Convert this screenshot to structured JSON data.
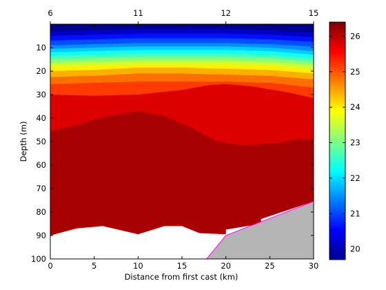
{
  "chart_data": {
    "type": "heatmap",
    "xlabel": "Distance from first cast (km)",
    "ylabel": "Depth (m)",
    "xlim": [
      0,
      30
    ],
    "ylim": [
      0,
      100
    ],
    "y_reversed": true,
    "x_ticks": [
      0,
      5,
      10,
      15,
      20,
      25,
      30
    ],
    "y_ticks": [
      10,
      20,
      30,
      40,
      50,
      60,
      70,
      80,
      90,
      100
    ],
    "top_axis": {
      "ticks": [
        {
          "x": 0,
          "label": "6"
        },
        {
          "x": 10,
          "label": "11"
        },
        {
          "x": 20,
          "label": "12"
        },
        {
          "x": 30,
          "label": "15"
        }
      ]
    },
    "colorbar": {
      "range": [
        19.7,
        26.4
      ],
      "ticks": [
        20,
        21,
        22,
        23,
        24,
        25,
        26
      ],
      "colormap": "jet"
    },
    "contour_bands": [
      {
        "value": 19.8,
        "color": "#00008f",
        "points": [
          [
            0,
            0
          ],
          [
            30,
            0
          ],
          [
            30,
            100
          ],
          [
            0,
            100
          ]
        ]
      },
      {
        "value": 20.2,
        "color": "#0000c8",
        "points": [
          [
            0,
            3
          ],
          [
            5,
            2.5
          ],
          [
            10,
            2
          ],
          [
            15,
            2
          ],
          [
            20,
            2
          ],
          [
            25,
            2.5
          ],
          [
            30,
            3.5
          ],
          [
            30,
            100
          ],
          [
            0,
            100
          ]
        ]
      },
      {
        "value": 20.6,
        "color": "#0010ff",
        "points": [
          [
            0,
            5
          ],
          [
            5,
            4.5
          ],
          [
            10,
            4
          ],
          [
            15,
            4
          ],
          [
            20,
            4
          ],
          [
            25,
            4.5
          ],
          [
            30,
            5.5
          ],
          [
            30,
            100
          ],
          [
            0,
            100
          ]
        ]
      },
      {
        "value": 21.0,
        "color": "#0050ff",
        "points": [
          [
            0,
            7
          ],
          [
            5,
            6.5
          ],
          [
            10,
            6
          ],
          [
            15,
            6
          ],
          [
            20,
            6
          ],
          [
            25,
            6.5
          ],
          [
            30,
            7.5
          ],
          [
            30,
            100
          ],
          [
            0,
            100
          ]
        ]
      },
      {
        "value": 21.4,
        "color": "#0090ff",
        "points": [
          [
            0,
            9
          ],
          [
            5,
            8.5
          ],
          [
            10,
            8
          ],
          [
            15,
            8
          ],
          [
            20,
            8
          ],
          [
            25,
            8.5
          ],
          [
            30,
            9.5
          ],
          [
            30,
            100
          ],
          [
            0,
            100
          ]
        ]
      },
      {
        "value": 21.8,
        "color": "#00d0ff",
        "points": [
          [
            0,
            10.5
          ],
          [
            5,
            10
          ],
          [
            10,
            9.5
          ],
          [
            15,
            9.5
          ],
          [
            20,
            9.5
          ],
          [
            25,
            10
          ],
          [
            30,
            11.5
          ],
          [
            30,
            100
          ],
          [
            0,
            100
          ]
        ]
      },
      {
        "value": 22.2,
        "color": "#10ffef",
        "points": [
          [
            0,
            12
          ],
          [
            5,
            11.5
          ],
          [
            10,
            11
          ],
          [
            15,
            11
          ],
          [
            20,
            11
          ],
          [
            25,
            11.5
          ],
          [
            30,
            13
          ],
          [
            30,
            100
          ],
          [
            0,
            100
          ]
        ]
      },
      {
        "value": 22.6,
        "color": "#50ffaf",
        "points": [
          [
            0,
            13.5
          ],
          [
            5,
            13
          ],
          [
            10,
            12.5
          ],
          [
            15,
            12.5
          ],
          [
            20,
            12.5
          ],
          [
            25,
            13
          ],
          [
            30,
            14.5
          ],
          [
            30,
            100
          ],
          [
            0,
            100
          ]
        ]
      },
      {
        "value": 23.0,
        "color": "#90ff6f",
        "points": [
          [
            0,
            15
          ],
          [
            5,
            14.5
          ],
          [
            10,
            14
          ],
          [
            15,
            14
          ],
          [
            20,
            14
          ],
          [
            25,
            14.5
          ],
          [
            30,
            16
          ],
          [
            30,
            100
          ],
          [
            0,
            100
          ]
        ]
      },
      {
        "value": 23.4,
        "color": "#d0ff2f",
        "points": [
          [
            0,
            16.5
          ],
          [
            5,
            16
          ],
          [
            10,
            15.5
          ],
          [
            15,
            15.5
          ],
          [
            20,
            15.5
          ],
          [
            25,
            16
          ],
          [
            30,
            17.5
          ],
          [
            30,
            100
          ],
          [
            0,
            100
          ]
        ]
      },
      {
        "value": 23.8,
        "color": "#ffef00",
        "points": [
          [
            0,
            18
          ],
          [
            5,
            17.5
          ],
          [
            10,
            17
          ],
          [
            15,
            17
          ],
          [
            20,
            17
          ],
          [
            25,
            17.5
          ],
          [
            30,
            19
          ],
          [
            30,
            100
          ],
          [
            0,
            100
          ]
        ]
      },
      {
        "value": 24.2,
        "color": "#ffaf00",
        "points": [
          [
            0,
            20
          ],
          [
            5,
            19.5
          ],
          [
            10,
            18.5
          ],
          [
            15,
            18.5
          ],
          [
            20,
            19
          ],
          [
            25,
            19.5
          ],
          [
            30,
            21
          ],
          [
            30,
            100
          ],
          [
            0,
            100
          ]
        ]
      },
      {
        "value": 24.6,
        "color": "#ff6f00",
        "points": [
          [
            0,
            22.5
          ],
          [
            5,
            22
          ],
          [
            10,
            21
          ],
          [
            15,
            21
          ],
          [
            20,
            21.5
          ],
          [
            25,
            22
          ],
          [
            30,
            23.5
          ],
          [
            30,
            100
          ],
          [
            0,
            100
          ]
        ]
      },
      {
        "value": 25.0,
        "color": "#ff3a00",
        "points": [
          [
            0,
            25.5
          ],
          [
            5,
            25
          ],
          [
            10,
            24.5
          ],
          [
            15,
            24.5
          ],
          [
            20,
            24.5
          ],
          [
            25,
            25
          ],
          [
            30,
            27
          ],
          [
            30,
            100
          ],
          [
            0,
            100
          ]
        ]
      },
      {
        "value": 25.5,
        "color": "#dd0000",
        "points": [
          [
            0,
            30
          ],
          [
            5,
            30.5
          ],
          [
            10,
            30
          ],
          [
            15,
            28
          ],
          [
            18,
            26
          ],
          [
            20,
            25.5
          ],
          [
            23,
            26.5
          ],
          [
            27,
            29
          ],
          [
            30,
            31.5
          ],
          [
            30,
            100
          ],
          [
            0,
            100
          ]
        ]
      },
      {
        "value": 26.0,
        "color": "#a60000",
        "points": [
          [
            0,
            45.5
          ],
          [
            3,
            43
          ],
          [
            6,
            39.5
          ],
          [
            10,
            37
          ],
          [
            13,
            39
          ],
          [
            16,
            44
          ],
          [
            19,
            50
          ],
          [
            22,
            51.5
          ],
          [
            26,
            50.5
          ],
          [
            28,
            49
          ],
          [
            30,
            49
          ],
          [
            30,
            100
          ],
          [
            0,
            100
          ]
        ]
      }
    ],
    "seafloor": {
      "color": "#b4b4b4",
      "outline_color": "#ff00ff",
      "points": [
        [
          17.8,
          100
        ],
        [
          20,
          90
        ],
        [
          30,
          75.5
        ],
        [
          30,
          100
        ]
      ]
    },
    "no_data_regions": [
      {
        "points": [
          [
            0,
            90
          ],
          [
            3,
            87
          ],
          [
            6,
            86
          ],
          [
            10,
            89.5
          ],
          [
            13,
            86
          ],
          [
            15,
            86
          ],
          [
            17,
            89
          ],
          [
            20,
            89.5
          ],
          [
            20,
            87.5
          ],
          [
            24,
            85
          ],
          [
            24,
            83
          ],
          [
            30,
            75.5
          ],
          [
            30,
            100
          ],
          [
            0,
            100
          ]
        ]
      }
    ]
  }
}
